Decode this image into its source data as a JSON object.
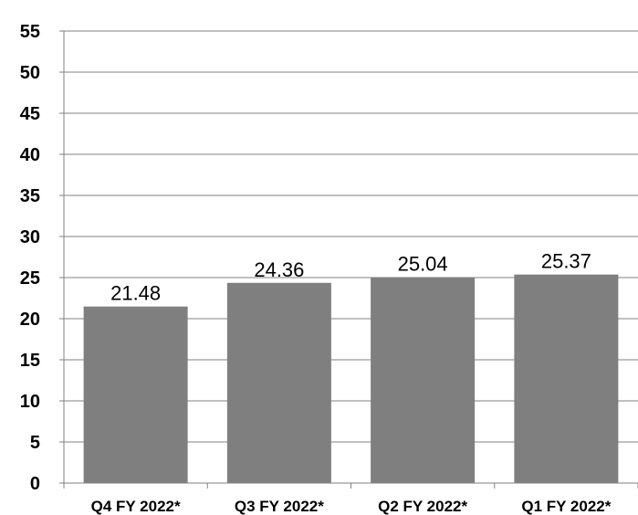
{
  "chart_data": {
    "type": "bar",
    "title": "",
    "xlabel": "",
    "ylabel": "",
    "categories": [
      "Q4 FY 2022*",
      "Q3 FY 2022*",
      "Q2 FY 2022*",
      "Q1 FY 2022*"
    ],
    "values": [
      21.48,
      24.36,
      25.04,
      25.37
    ],
    "data_labels": [
      "21.48",
      "24.36",
      "25.04",
      "25.37"
    ],
    "ylim": [
      0,
      55
    ],
    "yticks": [
      "0",
      "5",
      "10",
      "15",
      "20",
      "25",
      "30",
      "35",
      "40",
      "45",
      "50",
      "55"
    ],
    "grid": true,
    "legend": "none",
    "colors": {
      "bar": "#7f7f7f",
      "grid": "#808080"
    }
  }
}
